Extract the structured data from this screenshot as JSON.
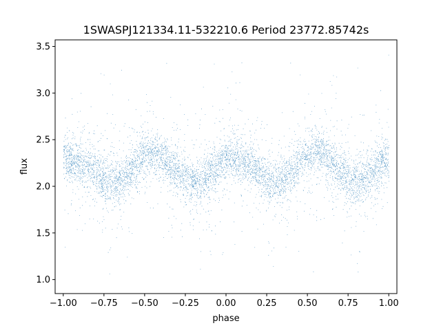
{
  "chart_data": {
    "type": "scatter",
    "title": "1SWASPJ121334.11-532210.6 Period 23772.85742s",
    "xlabel": "phase",
    "ylabel": "flux",
    "xlim": [
      -1.05,
      1.05
    ],
    "ylim": [
      0.85,
      3.57
    ],
    "x_ticks": [
      -1.0,
      -0.75,
      -0.5,
      -0.25,
      0.0,
      0.25,
      0.5,
      0.75,
      1.0
    ],
    "x_tick_labels": [
      "−1.00",
      "−0.75",
      "−0.50",
      "−0.25",
      "0.00",
      "0.25",
      "0.50",
      "0.75",
      "1.00"
    ],
    "y_ticks": [
      1.0,
      1.5,
      2.0,
      2.5,
      3.0,
      3.5
    ],
    "y_tick_labels": [
      "1.0",
      "1.5",
      "2.0",
      "2.5",
      "3.0",
      "3.5"
    ],
    "grid": false,
    "legend": "none",
    "marker_color": "#1f77b4",
    "phase_range": [
      -1.0,
      1.0
    ],
    "flux_profile": [
      {
        "phase": -1.0,
        "flux": 2.3
      },
      {
        "phase": -0.9,
        "flux": 2.25
      },
      {
        "phase": -0.7,
        "flux": 2.05
      },
      {
        "phase": -0.45,
        "flux": 2.35
      },
      {
        "phase": -0.2,
        "flux": 2.05
      },
      {
        "phase": 0.05,
        "flux": 2.3
      },
      {
        "phase": 0.1,
        "flux": 2.25
      },
      {
        "phase": 0.3,
        "flux": 2.05
      },
      {
        "phase": 0.55,
        "flux": 2.35
      },
      {
        "phase": 0.8,
        "flux": 2.05
      },
      {
        "phase": 1.0,
        "flux": 2.3
      }
    ]
  }
}
